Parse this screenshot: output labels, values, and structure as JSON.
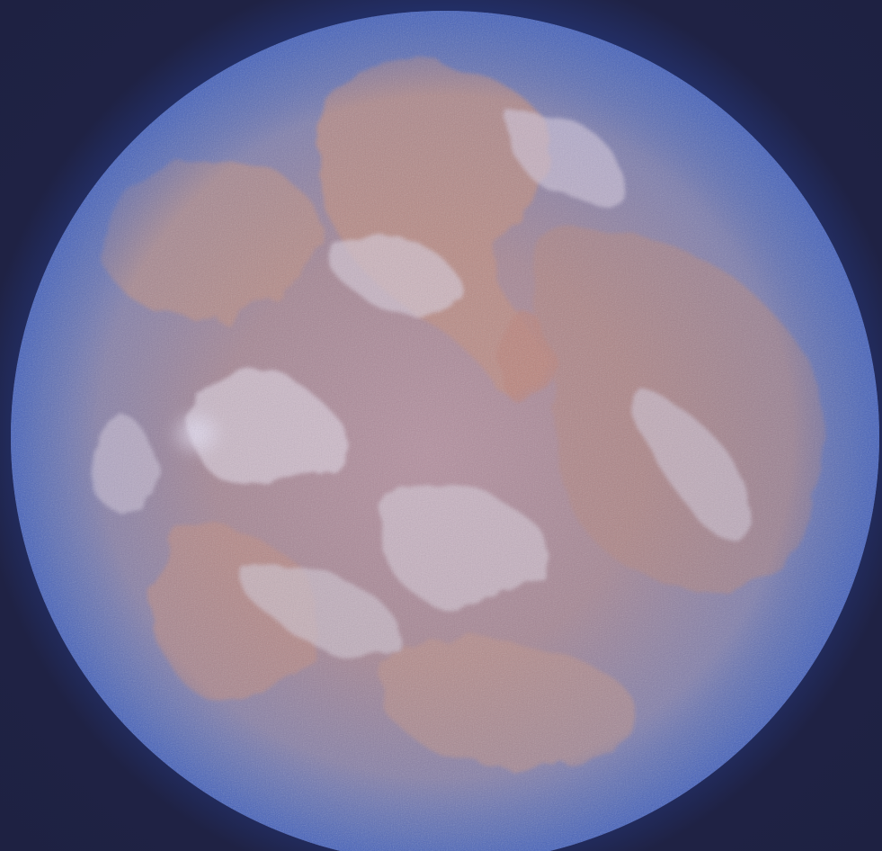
{
  "image": {
    "subject": "planet-earth",
    "colors": {
      "space": "#1f2244",
      "atmosphere_glow": "#3c6edc",
      "ocean": "#5a6fb0",
      "land_warm": "#c08a7e",
      "cloud": "#d9c9d6",
      "rim": "#3b5fb5"
    }
  }
}
